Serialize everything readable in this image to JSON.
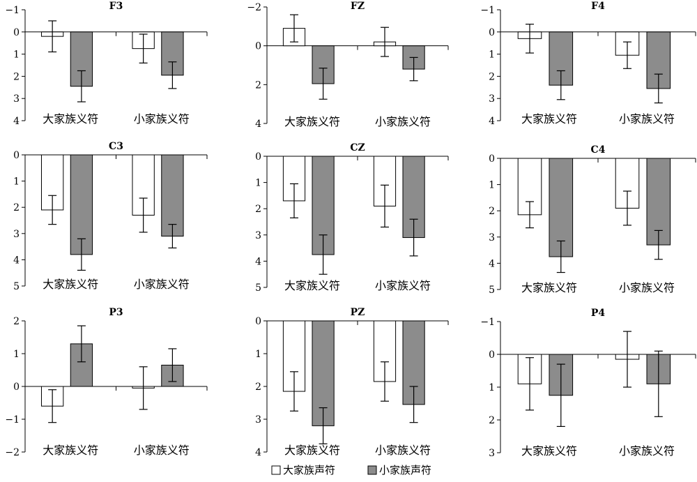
{
  "chart_data": [
    {
      "type": "bar",
      "title": "F3",
      "categories": [
        "大家族义符",
        "小家族义符"
      ],
      "ylim": [
        4,
        -1
      ],
      "yticks": [
        -1,
        0,
        1,
        2,
        3,
        4
      ],
      "series": [
        {
          "name": "大家族声符",
          "values": [
            0.2,
            0.75
          ],
          "err": [
            0.7,
            0.65
          ]
        },
        {
          "name": "小家族声符",
          "values": [
            2.45,
            1.95
          ],
          "err": [
            0.7,
            0.6
          ]
        }
      ]
    },
    {
      "type": "bar",
      "title": "FZ",
      "categories": [
        "大家族义符",
        "小家族义符"
      ],
      "ylim": [
        4,
        -2
      ],
      "yticks": [
        -2,
        0,
        2,
        4
      ],
      "series": [
        {
          "name": "大家族声符",
          "values": [
            -0.9,
            -0.2
          ],
          "err": [
            0.7,
            0.75
          ]
        },
        {
          "name": "小家族声符",
          "values": [
            1.95,
            1.2
          ],
          "err": [
            0.8,
            0.6
          ]
        }
      ]
    },
    {
      "type": "bar",
      "title": "F4",
      "categories": [
        "大家族义符",
        "小家族义符"
      ],
      "ylim": [
        4,
        -1
      ],
      "yticks": [
        -1,
        0,
        1,
        2,
        3,
        4
      ],
      "series": [
        {
          "name": "大家族声符",
          "values": [
            0.3,
            1.05
          ],
          "err": [
            0.65,
            0.6
          ]
        },
        {
          "name": "小家族声符",
          "values": [
            2.4,
            2.55
          ],
          "err": [
            0.65,
            0.65
          ]
        }
      ]
    },
    {
      "type": "bar",
      "title": "C3",
      "categories": [
        "大家族义符",
        "小家族义符"
      ],
      "ylim": [
        5,
        0
      ],
      "yticks": [
        0,
        1,
        2,
        3,
        4,
        5
      ],
      "series": [
        {
          "name": "大家族声符",
          "values": [
            2.1,
            2.3
          ],
          "err": [
            0.55,
            0.65
          ]
        },
        {
          "name": "小家族声符",
          "values": [
            3.8,
            3.1
          ],
          "err": [
            0.6,
            0.45
          ]
        }
      ]
    },
    {
      "type": "bar",
      "title": "CZ",
      "categories": [
        "大家族义符",
        "小家族义符"
      ],
      "ylim": [
        5,
        0
      ],
      "yticks": [
        0,
        1,
        2,
        3,
        4,
        5
      ],
      "series": [
        {
          "name": "大家族声符",
          "values": [
            1.7,
            1.9
          ],
          "err": [
            0.65,
            0.8
          ]
        },
        {
          "name": "小家族声符",
          "values": [
            3.75,
            3.1
          ],
          "err": [
            0.75,
            0.7
          ]
        }
      ]
    },
    {
      "type": "bar",
      "title": "C4",
      "categories": [
        "大家族义符",
        "小家族义符"
      ],
      "ylim": [
        5,
        0
      ],
      "yticks": [
        0,
        1,
        2,
        3,
        4,
        5
      ],
      "series": [
        {
          "name": "大家族声符",
          "values": [
            2.15,
            1.9
          ],
          "err": [
            0.5,
            0.65
          ]
        },
        {
          "name": "小家族声符",
          "values": [
            3.75,
            3.3
          ],
          "err": [
            0.6,
            0.55
          ]
        }
      ]
    },
    {
      "type": "bar",
      "title": "P3",
      "categories": [
        "大家族义符",
        "小家族义符"
      ],
      "ylim": [
        -2,
        2
      ],
      "yticks": [
        -2,
        -1,
        0,
        1,
        2
      ],
      "series": [
        {
          "name": "大家族声符",
          "values": [
            -0.6,
            -0.05
          ],
          "err": [
            0.5,
            0.65
          ]
        },
        {
          "name": "小家族声符",
          "values": [
            1.3,
            0.65
          ],
          "err": [
            0.55,
            0.5
          ]
        }
      ]
    },
    {
      "type": "bar",
      "title": "PZ",
      "categories": [
        "大家族义符",
        "小家族义符"
      ],
      "ylim": [
        4,
        0
      ],
      "yticks": [
        0,
        1,
        2,
        3,
        4
      ],
      "series": [
        {
          "name": "大家族声符",
          "values": [
            2.15,
            1.85
          ],
          "err": [
            0.6,
            0.6
          ]
        },
        {
          "name": "小家族声符",
          "values": [
            3.2,
            2.55
          ],
          "err": [
            0.55,
            0.55
          ]
        }
      ]
    },
    {
      "type": "bar",
      "title": "P4",
      "categories": [
        "大家族义符",
        "小家族义符"
      ],
      "ylim": [
        3,
        -1
      ],
      "yticks": [
        -1,
        0,
        1,
        2,
        3
      ],
      "series": [
        {
          "name": "大家族声符",
          "values": [
            0.9,
            0.15
          ],
          "err": [
            0.8,
            0.85
          ]
        },
        {
          "name": "小家族声符",
          "values": [
            1.25,
            0.9
          ],
          "err": [
            0.95,
            1.0
          ]
        }
      ]
    }
  ],
  "legend": {
    "items": [
      {
        "label": "大家族声符",
        "color": "#ffffff"
      },
      {
        "label": "小家族声符",
        "color": "#8c8c8c"
      }
    ]
  },
  "colors": {
    "series0": "#ffffff",
    "series1": "#8c8c8c"
  }
}
